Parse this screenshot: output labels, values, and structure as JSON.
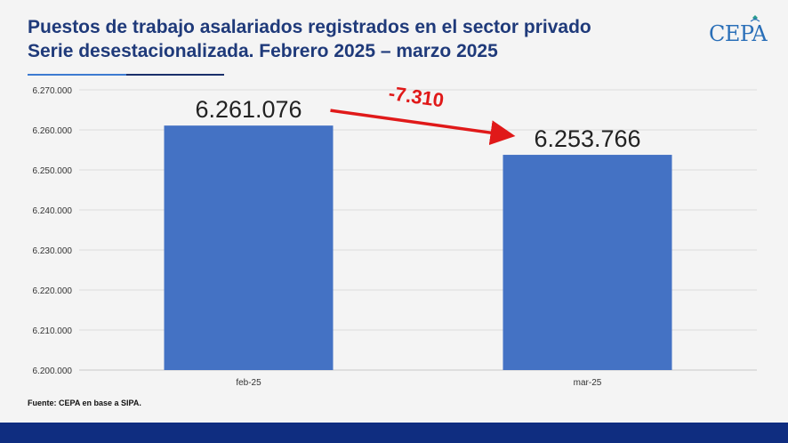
{
  "header": {
    "title_line1": "Puestos de trabajo asalariados registrados en el sector privado",
    "title_line2": "Serie desestacionalizada. Febrero 2025 – marzo 2025"
  },
  "logo": {
    "text": "CEPA"
  },
  "source": "Fuente: CEPA en base a SIPA.",
  "colors": {
    "bar": "#4472c4",
    "arrow": "#e01919",
    "title": "#1f3a7a",
    "footer": "#0f2d80"
  },
  "chart_data": {
    "type": "bar",
    "categories": [
      "feb-25",
      "mar-25"
    ],
    "values": [
      6261076,
      6253766
    ],
    "data_labels": [
      "6.261.076",
      "6.253.766"
    ],
    "ylim": [
      6200000,
      6270000
    ],
    "yticks": [
      "6.200.000",
      "6.210.000",
      "6.220.000",
      "6.230.000",
      "6.240.000",
      "6.250.000",
      "6.260.000",
      "6.270.000"
    ],
    "ytick_values": [
      6200000,
      6210000,
      6220000,
      6230000,
      6240000,
      6250000,
      6260000,
      6270000
    ],
    "grid": true,
    "annotation": {
      "text": "-7.310",
      "from_category": "feb-25",
      "to_category": "mar-25"
    }
  }
}
